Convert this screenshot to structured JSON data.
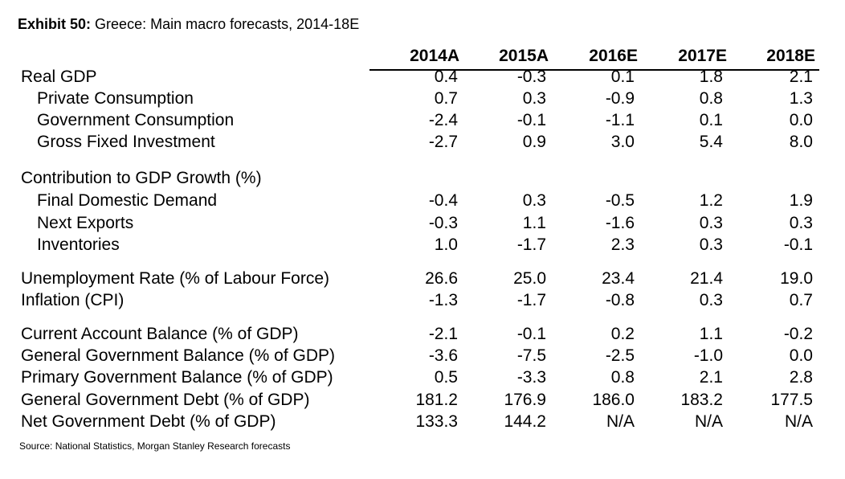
{
  "title": {
    "label": "Exhibit 50:",
    "text": "Greece: Main macro forecasts, 2014-18E"
  },
  "columns": [
    "2014A",
    "2015A",
    "2016E",
    "2017E",
    "2018E"
  ],
  "rows": [
    {
      "label": "Real GDP",
      "values": [
        "0.4",
        "-0.3",
        "0.1",
        "1.8",
        "2.1"
      ]
    },
    {
      "label": "Private Consumption",
      "values": [
        "0.7",
        "0.3",
        "-0.9",
        "0.8",
        "1.3"
      ]
    },
    {
      "label": "Government Consumption",
      "values": [
        "-2.4",
        "-0.1",
        "-1.1",
        "0.1",
        "0.0"
      ]
    },
    {
      "label": "Gross Fixed Investment",
      "values": [
        "-2.7",
        "0.9",
        "3.0",
        "5.4",
        "8.0"
      ]
    },
    {
      "label": "Contribution to GDP Growth (%)",
      "values": []
    },
    {
      "label": "Final Domestic Demand",
      "values": [
        "-0.4",
        "0.3",
        "-0.5",
        "1.2",
        "1.9"
      ]
    },
    {
      "label": "Next Exports",
      "values": [
        "-0.3",
        "1.1",
        "-1.6",
        "0.3",
        "0.3"
      ]
    },
    {
      "label": "Inventories",
      "values": [
        "1.0",
        "-1.7",
        "2.3",
        "0.3",
        "-0.1"
      ]
    },
    {
      "label": "Unemployment Rate (% of Labour Force)",
      "values": [
        "26.6",
        "25.0",
        "23.4",
        "21.4",
        "19.0"
      ]
    },
    {
      "label": "Inflation (CPI)",
      "values": [
        "-1.3",
        "-1.7",
        "-0.8",
        "0.3",
        "0.7"
      ]
    },
    {
      "label": "Current Account Balance (% of GDP)",
      "values": [
        "-2.1",
        "-0.1",
        "0.2",
        "1.1",
        "-0.2"
      ]
    },
    {
      "label": "General Government Balance (% of GDP)",
      "values": [
        "-3.6",
        "-7.5",
        "-2.5",
        "-1.0",
        "0.0"
      ]
    },
    {
      "label": "Primary Government Balance (% of GDP)",
      "values": [
        "0.5",
        "-3.3",
        "0.8",
        "2.1",
        "2.8"
      ]
    },
    {
      "label": "General Government Debt (% of GDP)",
      "values": [
        "181.2",
        "176.9",
        "186.0",
        "183.2",
        "177.5"
      ]
    },
    {
      "label": "Net Government Debt (% of GDP)",
      "values": [
        "133.3",
        "144.2",
        "N/A",
        "N/A",
        "N/A"
      ]
    }
  ],
  "source": "Source: National Statistics, Morgan Stanley Research forecasts"
}
